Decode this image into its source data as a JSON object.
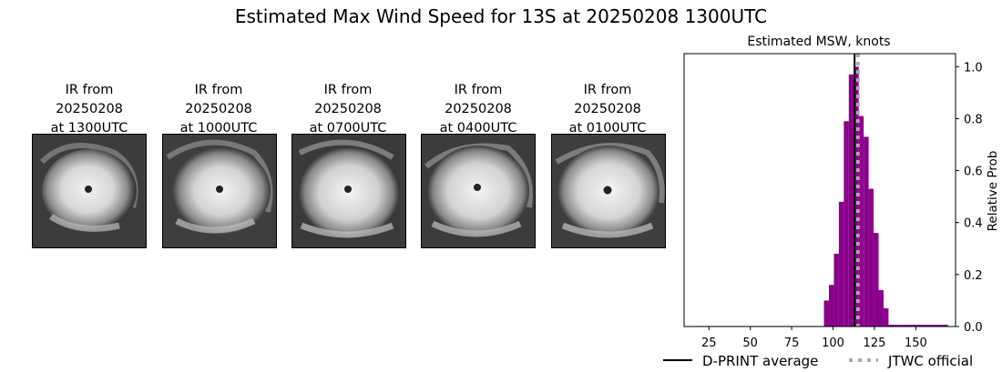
{
  "suptitle": "Estimated Max Wind Speed for 13S at 20250208 1300UTC",
  "ir_panels": [
    {
      "line1": "IR from",
      "line2": "20250208",
      "line3": "at 1300UTC"
    },
    {
      "line1": "IR from",
      "line2": "20250208",
      "line3": "at 1000UTC"
    },
    {
      "line1": "IR from",
      "line2": "20250208",
      "line3": "at 0700UTC"
    },
    {
      "line1": "IR from",
      "line2": "20250208",
      "line3": "at 0400UTC"
    },
    {
      "line1": "IR from",
      "line2": "20250208",
      "line3": "at 0100UTC"
    }
  ],
  "chart_data": {
    "type": "bar",
    "title": "Estimated MSW, knots",
    "xlabel": "",
    "ylabel": "Relative Prob",
    "xlim": [
      10,
      174
    ],
    "ylim": [
      0,
      1.05
    ],
    "xticks": [
      25,
      50,
      75,
      100,
      125,
      150
    ],
    "yticks": [
      0.0,
      0.2,
      0.4,
      0.6,
      0.8,
      1.0
    ],
    "bar_width": 3,
    "bar_color": "#8b008b",
    "x": [
      15,
      18,
      21,
      24,
      27,
      30,
      33,
      36,
      39,
      42,
      45,
      48,
      51,
      54,
      57,
      60,
      63,
      66,
      69,
      72,
      75,
      78,
      81,
      84,
      87,
      90,
      93,
      96,
      99,
      102,
      105,
      108,
      111,
      114,
      117,
      120,
      123,
      126,
      129,
      132,
      135,
      138,
      141,
      144,
      147,
      150,
      153,
      156,
      159,
      162,
      165,
      168
    ],
    "values": [
      0.002,
      0.002,
      0.002,
      0.002,
      0.002,
      0.002,
      0.002,
      0.002,
      0.002,
      0.002,
      0.002,
      0.002,
      0.002,
      0.002,
      0.002,
      0.002,
      0.002,
      0.002,
      0.002,
      0.002,
      0.002,
      0.002,
      0.002,
      0.002,
      0.002,
      0.002,
      0.002,
      0.1,
      0.16,
      0.28,
      0.48,
      0.79,
      0.97,
      1.0,
      0.81,
      0.73,
      0.53,
      0.36,
      0.14,
      0.07,
      0.007,
      0.007,
      0.007,
      0.007,
      0.007,
      0.007,
      0.007,
      0.007,
      0.007,
      0.007,
      0.007,
      0.007
    ],
    "dprint_average": 113,
    "jtwc_official": 115,
    "legend": {
      "position": "bottom",
      "entries": [
        {
          "label": "D-PRINT average",
          "color": "#000000",
          "style": "solid"
        },
        {
          "label": "JTWC official",
          "color": "#a9a9a9",
          "style": "dotted"
        }
      ]
    }
  }
}
